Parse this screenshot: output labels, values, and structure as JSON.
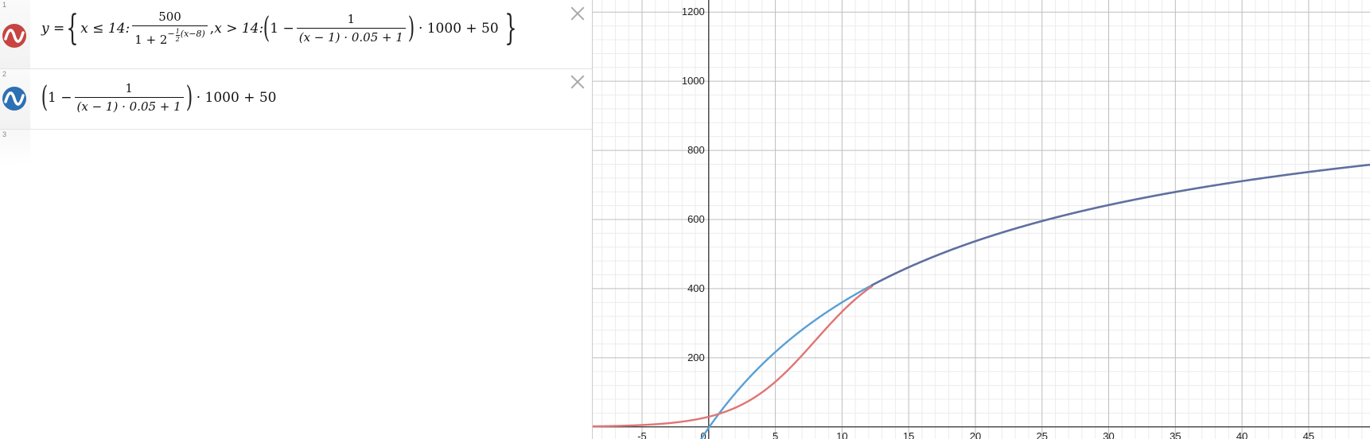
{
  "expressions": [
    {
      "index": "1",
      "color": "#c74440",
      "lhs": "y =",
      "cond1": "x ≤ 14:",
      "frac1_num": "500",
      "frac1_den_base": "1 + 2",
      "frac1_den_exp_sign": "−",
      "frac1_den_exp_frac_num": "1",
      "frac1_den_exp_frac_den": "2",
      "frac1_den_exp_rest": "(x−8)",
      "sep": ",",
      "cond2": "x > 14:",
      "one_minus": "1 −",
      "frac2_num": "1",
      "frac2_den": "(x − 1) · 0.05 + 1",
      "tail": "· 1000 + 50"
    },
    {
      "index": "2",
      "color": "#2d70b3",
      "one_minus": "1 −",
      "frac_num": "1",
      "frac_den": "(x − 1) · 0.05 + 1",
      "tail": "· 1000 + 50"
    },
    {
      "index": "3"
    }
  ],
  "graph": {
    "x_range": [
      -8.7,
      49.6
    ],
    "y_range": [
      -35,
      1235
    ],
    "x_ticks": [
      "-5",
      "0",
      "5",
      "10",
      "15",
      "20",
      "25",
      "30",
      "35",
      "40",
      "45"
    ],
    "y_ticks": [
      "200",
      "400",
      "600",
      "800",
      "1000",
      "1200"
    ],
    "major_step_x": 5,
    "major_step_y": 200,
    "minor_step_x": 1,
    "minor_step_y": 40,
    "curve_colors": {
      "red": "#e07575",
      "blue": "#5a9fd4",
      "merged": "#5f6f9f"
    }
  }
}
